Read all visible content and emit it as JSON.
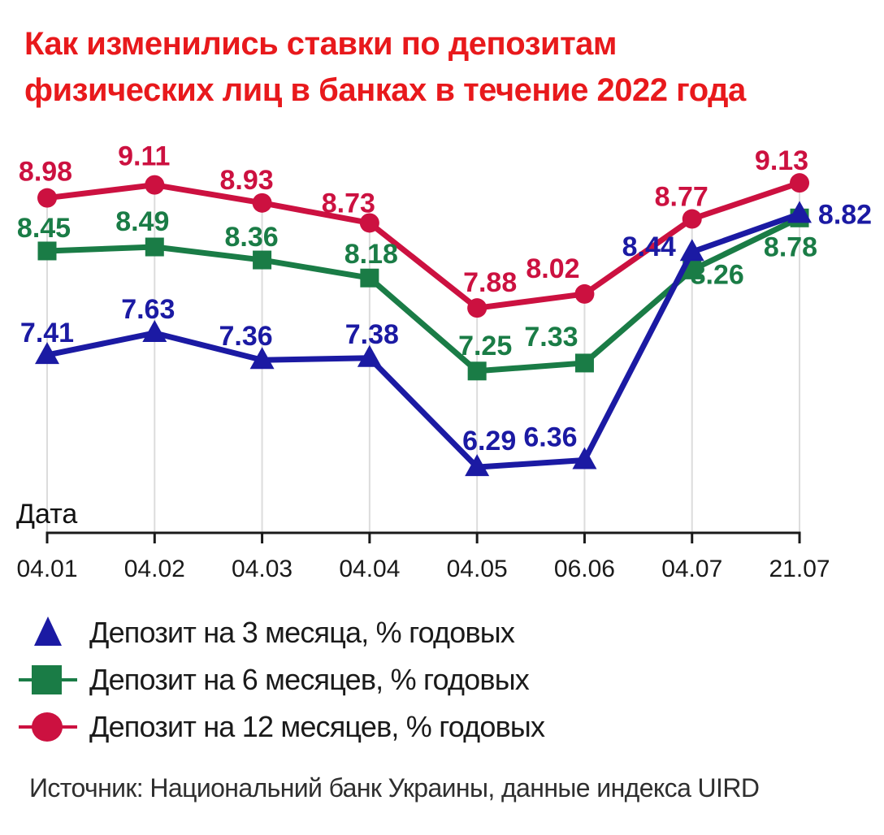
{
  "title_lines": [
    "Как изменились ставки по депозитам",
    "физических лиц в банках в течение 2022 года"
  ],
  "title_color": "#E8191C",
  "source": "Источник: Национальний банк Украины, данные индекса UIRD",
  "chart_data": {
    "type": "line",
    "x": [
      "04.01",
      "04.02",
      "04.03",
      "04.04",
      "04.05",
      "06.06",
      "04.07",
      "21.07"
    ],
    "xlabel": "Дата",
    "ylim": [
      5.6,
      9.6
    ],
    "grid": "vertical",
    "gridline_color": "#dcdcdc",
    "axis_color": "#1a1a1a",
    "legend_position": "bottom",
    "data_labels": true,
    "series": [
      {
        "name": "Депозит на 3 месяца, % годовых",
        "marker": "triangle",
        "color": "#1B1AA3",
        "values": [
          7.41,
          7.63,
          7.36,
          7.38,
          6.29,
          6.36,
          8.44,
          8.82
        ],
        "label_offsets": [
          [
            0,
            -28
          ],
          [
            -8,
            -30
          ],
          [
            -20,
            -30
          ],
          [
            3,
            -30
          ],
          [
            15,
            -33
          ],
          [
            -42,
            -29
          ],
          [
            -53,
            -7
          ],
          [
            56,
            0
          ]
        ]
      },
      {
        "name": "Депозит на 6 месяцев, % годовых",
        "marker": "square",
        "color": "#1A7C46",
        "values": [
          8.45,
          8.49,
          8.36,
          8.18,
          7.25,
          7.33,
          8.26,
          8.78
        ],
        "label_offsets": [
          [
            -4,
            -29
          ],
          [
            -15,
            -32
          ],
          [
            -13,
            -29
          ],
          [
            2,
            -30
          ],
          [
            10,
            -32
          ],
          [
            -41,
            -33
          ],
          [
            31,
            5
          ],
          [
            -11,
            35
          ]
        ]
      },
      {
        "name": "Депозит на 12 месяцев, % годовых",
        "marker": "circle",
        "color": "#CC1140",
        "values": [
          8.98,
          9.11,
          8.93,
          8.73,
          7.88,
          8.02,
          8.77,
          9.13
        ],
        "label_offsets": [
          [
            -2,
            -33
          ],
          [
            -13,
            -36
          ],
          [
            -19,
            -29
          ],
          [
            -26,
            -25
          ],
          [
            16,
            -32
          ],
          [
            -39,
            -32
          ],
          [
            -13,
            -28
          ],
          [
            -22,
            -28
          ]
        ]
      }
    ]
  }
}
